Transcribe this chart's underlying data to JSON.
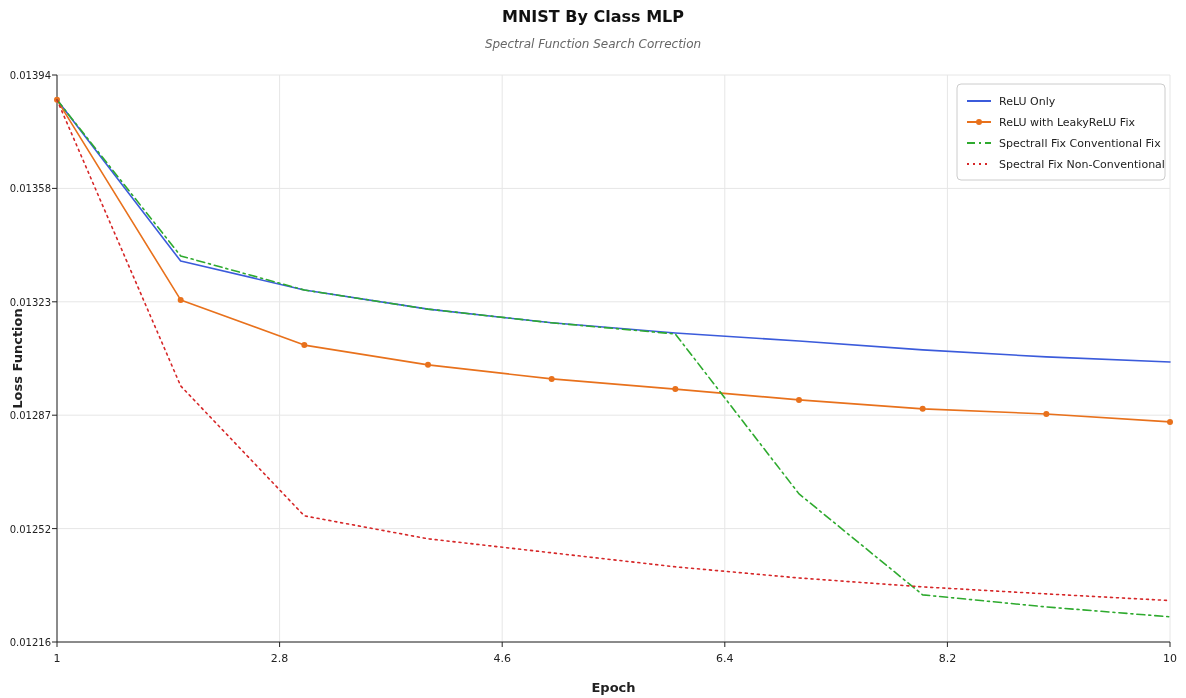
{
  "chart_data": {
    "type": "line",
    "title": "MNIST By Class MLP",
    "subtitle": "Spectral Function Search Correction",
    "xlabel": "Epoch",
    "ylabel": "Loss Function",
    "x": [
      1,
      2,
      3,
      4,
      5,
      6,
      7,
      8,
      9,
      10
    ],
    "series": [
      {
        "name": "ReLU Only",
        "color": "#3b5bdb",
        "line_style": "solid",
        "marker": "none",
        "values": [
          0.013862,
          0.013356,
          0.013265,
          0.013205,
          0.013162,
          0.01313,
          0.013105,
          0.013077,
          0.013055,
          0.013039
        ]
      },
      {
        "name": "ReLU with LeakyReLU Fix",
        "color": "#e8711c",
        "line_style": "solid",
        "marker": "circle",
        "values": [
          0.013862,
          0.013234,
          0.013092,
          0.01303,
          0.012986,
          0.012954,
          0.01292,
          0.012892,
          0.012876,
          0.012851
        ]
      },
      {
        "name": "Spectrall Fix Conventional Fix",
        "color": "#2eaa2e",
        "line_style": "dashdot",
        "marker": "none",
        "values": [
          0.013862,
          0.013372,
          0.013265,
          0.013205,
          0.013162,
          0.013127,
          0.012625,
          0.012308,
          0.01227,
          0.012239
        ]
      },
      {
        "name": "Spectral Fix Non-Conventional",
        "color": "#d62728",
        "line_style": "dotted",
        "marker": "none",
        "values": [
          0.013862,
          0.012964,
          0.012556,
          0.012484,
          0.01244,
          0.012396,
          0.012361,
          0.012333,
          0.012311,
          0.01229
        ]
      }
    ],
    "xlim": [
      1,
      10
    ],
    "xticks": [
      1,
      2.8,
      4.6,
      6.4,
      8.2,
      10
    ],
    "ylim": [
      0.01216,
      0.01394
    ],
    "yticks": [
      {
        "value": 0.01216,
        "label": "0.01216"
      },
      {
        "value": 0.012516,
        "label": "0.01252"
      },
      {
        "value": 0.012872,
        "label": "0.01287"
      },
      {
        "value": 0.013228,
        "label": "0.01323"
      },
      {
        "value": 0.013584,
        "label": "0.01358"
      },
      {
        "value": 0.01394,
        "label": "0.01394"
      }
    ],
    "grid": true,
    "legend": "top right"
  }
}
